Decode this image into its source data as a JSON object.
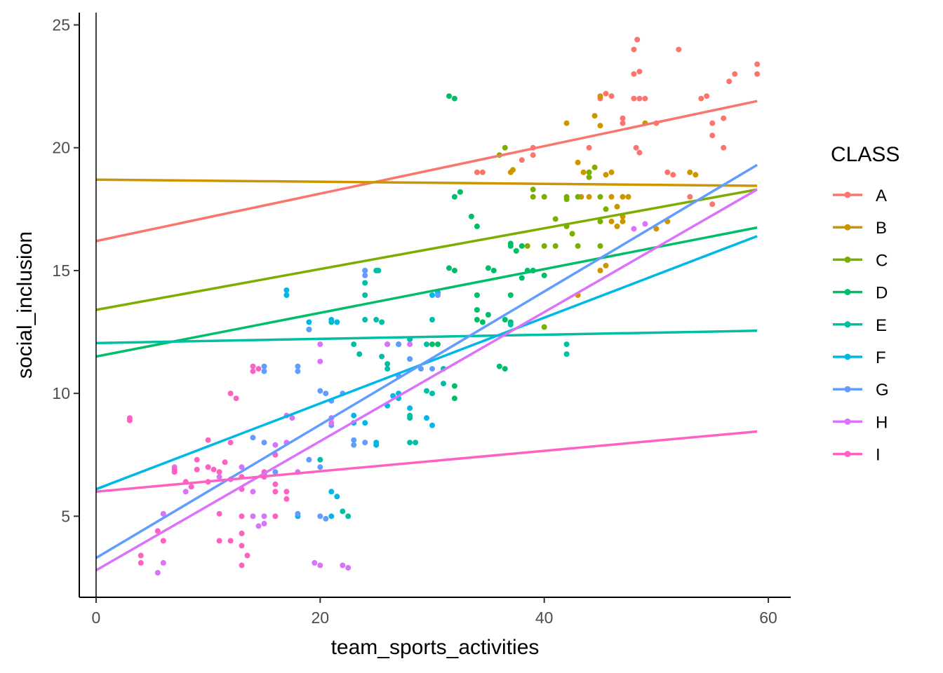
{
  "chart_data": {
    "type": "scatter",
    "xlabel": "team_sports_activities",
    "ylabel": "social_inclusion",
    "xlim": [
      -1.5,
      62
    ],
    "ylim": [
      1.7,
      25.5
    ],
    "xticks": [
      0,
      20,
      40,
      60
    ],
    "yticks": [
      5,
      10,
      15,
      20,
      25
    ],
    "grid": false,
    "zero_line_x": 0,
    "legend": {
      "title": "CLASS",
      "position": "right"
    },
    "series": [
      {
        "name": "A",
        "color": "#F8766D",
        "fit": [
          [
            0,
            16.2
          ],
          [
            59,
            21.9
          ]
        ],
        "points": [
          [
            34,
            19
          ],
          [
            34.5,
            19
          ],
          [
            38,
            19.5
          ],
          [
            39,
            20
          ],
          [
            39,
            19.7
          ],
          [
            44,
            20
          ],
          [
            45,
            22
          ],
          [
            45.5,
            22.2
          ],
          [
            46,
            22.1
          ],
          [
            47,
            21
          ],
          [
            47,
            21.2
          ],
          [
            48,
            24
          ],
          [
            48.3,
            24.4
          ],
          [
            48,
            23
          ],
          [
            48.5,
            23.1
          ],
          [
            48,
            22
          ],
          [
            48.5,
            22
          ],
          [
            49,
            22
          ],
          [
            48.2,
            20
          ],
          [
            48.5,
            19.8
          ],
          [
            50,
            21
          ],
          [
            51,
            19
          ],
          [
            51.5,
            18.9
          ],
          [
            52,
            24
          ],
          [
            54,
            22
          ],
          [
            54.5,
            22.1
          ],
          [
            55,
            21
          ],
          [
            55,
            20.5
          ],
          [
            56,
            21.2
          ],
          [
            56,
            20
          ],
          [
            56.5,
            22.7
          ],
          [
            57,
            23
          ],
          [
            59,
            23.4
          ],
          [
            59,
            23
          ],
          [
            53,
            18
          ],
          [
            55,
            17.7
          ]
        ]
      },
      {
        "name": "B",
        "color": "#CD9600",
        "fit": [
          [
            0,
            18.7
          ],
          [
            59,
            18.45
          ]
        ],
        "points": [
          [
            37,
            19
          ],
          [
            37.2,
            19.1
          ],
          [
            42,
            21
          ],
          [
            43,
            19.4
          ],
          [
            43.5,
            19
          ],
          [
            43.3,
            18
          ],
          [
            44,
            18
          ],
          [
            44.5,
            21.3
          ],
          [
            45,
            22.1
          ],
          [
            45,
            20.9
          ],
          [
            45.5,
            18.9
          ],
          [
            46,
            19
          ],
          [
            46,
            18
          ],
          [
            46,
            17
          ],
          [
            45,
            15
          ],
          [
            45.5,
            15.2
          ],
          [
            46.5,
            16.8
          ],
          [
            47,
            17.2
          ],
          [
            47,
            18
          ],
          [
            47.5,
            18
          ],
          [
            46.5,
            17.6
          ],
          [
            47,
            17
          ],
          [
            49,
            21
          ],
          [
            50,
            16.7
          ],
          [
            51,
            17
          ],
          [
            53,
            19
          ],
          [
            53.5,
            18.9
          ],
          [
            43,
            14
          ]
        ]
      },
      {
        "name": "C",
        "color": "#7CAE00",
        "fit": [
          [
            0,
            13.4
          ],
          [
            59,
            18.3
          ]
        ],
        "points": [
          [
            36,
            19.7
          ],
          [
            36.5,
            20
          ],
          [
            38.5,
            16
          ],
          [
            39,
            18
          ],
          [
            39,
            18.3
          ],
          [
            40,
            18
          ],
          [
            40,
            16
          ],
          [
            41,
            16
          ],
          [
            41,
            17.1
          ],
          [
            42,
            16.8
          ],
          [
            42,
            18
          ],
          [
            42.5,
            16.5
          ],
          [
            43,
            18
          ],
          [
            43,
            16
          ],
          [
            44,
            18.8
          ],
          [
            44,
            19
          ],
          [
            44.5,
            19.2
          ],
          [
            45,
            18
          ],
          [
            45,
            17
          ],
          [
            45,
            16
          ],
          [
            45.5,
            17.5
          ],
          [
            40,
            12.7
          ],
          [
            42,
            17.9
          ],
          [
            39,
            15
          ]
        ]
      },
      {
        "name": "D",
        "color": "#00BE67",
        "fit": [
          [
            0,
            11.5
          ],
          [
            59,
            16.75
          ]
        ],
        "points": [
          [
            31.5,
            22.1
          ],
          [
            32,
            22
          ],
          [
            32,
            18
          ],
          [
            32.5,
            18.2
          ],
          [
            31.5,
            15.1
          ],
          [
            32,
            15
          ],
          [
            33.5,
            17.2
          ],
          [
            34,
            16.8
          ],
          [
            34,
            14
          ],
          [
            34,
            13.4
          ],
          [
            34,
            13
          ],
          [
            34.5,
            12.9
          ],
          [
            35,
            15.1
          ],
          [
            35,
            13.2
          ],
          [
            35.5,
            15
          ],
          [
            36,
            11.1
          ],
          [
            36.5,
            11
          ],
          [
            36.5,
            13
          ],
          [
            37,
            14
          ],
          [
            37,
            16
          ],
          [
            37.5,
            15.8
          ],
          [
            37,
            12.9
          ],
          [
            38,
            14.7
          ],
          [
            38.5,
            15
          ],
          [
            39,
            15
          ],
          [
            40,
            14.8
          ],
          [
            38,
            16
          ],
          [
            37,
            16.1
          ],
          [
            32,
            10.3
          ],
          [
            32,
            9.8
          ],
          [
            30,
            12
          ],
          [
            30.5,
            12
          ]
        ]
      },
      {
        "name": "E",
        "color": "#00BFA4",
        "fit": [
          [
            0,
            12.05
          ],
          [
            59,
            12.55
          ]
        ],
        "points": [
          [
            24,
            15
          ],
          [
            24,
            14.5
          ],
          [
            24,
            14
          ],
          [
            25,
            15
          ],
          [
            25.2,
            15
          ],
          [
            24,
            13
          ],
          [
            25,
            13
          ],
          [
            25.5,
            12.9
          ],
          [
            26,
            12
          ],
          [
            26,
            11.2
          ],
          [
            26,
            11
          ],
          [
            25.5,
            11.5
          ],
          [
            23,
            12
          ],
          [
            23.5,
            11.6
          ],
          [
            27,
            12
          ],
          [
            28,
            12.2
          ],
          [
            28,
            11.4
          ],
          [
            28,
            9.1
          ],
          [
            28,
            9
          ],
          [
            28,
            8
          ],
          [
            28.5,
            8
          ],
          [
            29.5,
            10.1
          ],
          [
            30,
            10
          ],
          [
            30,
            13
          ],
          [
            29.5,
            12
          ],
          [
            31,
            11
          ],
          [
            31,
            10.4
          ],
          [
            22,
            5.2
          ],
          [
            22.5,
            5
          ],
          [
            20,
            7.3
          ],
          [
            21,
            12.9
          ],
          [
            42,
            12
          ],
          [
            42,
            11.6
          ],
          [
            37,
            12.8
          ]
        ]
      },
      {
        "name": "F",
        "color": "#00B8E7",
        "fit": [
          [
            0,
            6.1
          ],
          [
            59,
            16.4
          ]
        ],
        "points": [
          [
            17,
            14.2
          ],
          [
            17,
            14
          ],
          [
            21,
            13
          ],
          [
            21.5,
            12.9
          ],
          [
            23,
            9.1
          ],
          [
            23,
            8.8
          ],
          [
            24,
            8.8
          ],
          [
            25,
            8
          ],
          [
            25,
            7.9
          ],
          [
            26,
            9.5
          ],
          [
            26.5,
            9.9
          ],
          [
            27,
            9.8
          ],
          [
            27,
            10
          ],
          [
            28,
            9.4
          ],
          [
            29.5,
            9
          ],
          [
            30,
            8.7
          ],
          [
            30,
            14
          ],
          [
            30.5,
            14.1
          ],
          [
            21,
            5
          ],
          [
            21.5,
            5.8
          ],
          [
            21,
            6
          ],
          [
            18,
            5
          ],
          [
            19,
            12.9
          ],
          [
            19,
            12.6
          ]
        ]
      },
      {
        "name": "G",
        "color": "#619CFF",
        "fit": [
          [
            0,
            3.3
          ],
          [
            59,
            19.3
          ]
        ],
        "points": [
          [
            15,
            11.1
          ],
          [
            15,
            10.9
          ],
          [
            14,
            8.2
          ],
          [
            15,
            8
          ],
          [
            16,
            6.8
          ],
          [
            15,
            6.7
          ],
          [
            18,
            11.1
          ],
          [
            18,
            10.9
          ],
          [
            19,
            7.3
          ],
          [
            20,
            7
          ],
          [
            19,
            12.6
          ],
          [
            20,
            10.1
          ],
          [
            20.5,
            10
          ],
          [
            21,
            9.7
          ],
          [
            21,
            9
          ],
          [
            21,
            8.7
          ],
          [
            22,
            10
          ],
          [
            20,
            5
          ],
          [
            20.5,
            4.9
          ],
          [
            23,
            8.1
          ],
          [
            23,
            7.9
          ],
          [
            24,
            8
          ],
          [
            24,
            15
          ],
          [
            24,
            14.8
          ],
          [
            27,
            12
          ],
          [
            28,
            11.4
          ],
          [
            27,
            10.7
          ],
          [
            30,
            11
          ],
          [
            29,
            11
          ],
          [
            30.5,
            14
          ],
          [
            18,
            5.1
          ]
        ]
      },
      {
        "name": "H",
        "color": "#DB72FB",
        "fit": [
          [
            0,
            2.8
          ],
          [
            59,
            18.3
          ]
        ],
        "points": [
          [
            6,
            5.1
          ],
          [
            6,
            3.1
          ],
          [
            5.5,
            2.7
          ],
          [
            7,
            7
          ],
          [
            8,
            6
          ],
          [
            10,
            7
          ],
          [
            11,
            6.6
          ],
          [
            12,
            6.5
          ],
          [
            13,
            7
          ],
          [
            14,
            6
          ],
          [
            14,
            5
          ],
          [
            14.5,
            4.6
          ],
          [
            15,
            4.7
          ],
          [
            15,
            5
          ],
          [
            16,
            7.9
          ],
          [
            17,
            8
          ],
          [
            17,
            9.1
          ],
          [
            17.5,
            9
          ],
          [
            18,
            6.8
          ],
          [
            20,
            12
          ],
          [
            20,
            11.3
          ],
          [
            21,
            9
          ],
          [
            21,
            8.8
          ],
          [
            19.5,
            3.1
          ],
          [
            20,
            3
          ],
          [
            22,
            3
          ],
          [
            22.5,
            2.9
          ],
          [
            26,
            12
          ],
          [
            28,
            12
          ],
          [
            48,
            16.7
          ],
          [
            49,
            16.9
          ]
        ]
      },
      {
        "name": "I",
        "color": "#FF61C3",
        "fit": [
          [
            0,
            6.0
          ],
          [
            59,
            8.45
          ]
        ],
        "points": [
          [
            3,
            9
          ],
          [
            3,
            8.9
          ],
          [
            4,
            3.4
          ],
          [
            4,
            3.1
          ],
          [
            5.5,
            4.4
          ],
          [
            6,
            4
          ],
          [
            7,
            6.8
          ],
          [
            7,
            6.9
          ],
          [
            8,
            6.4
          ],
          [
            8.5,
            6.2
          ],
          [
            9,
            7.3
          ],
          [
            10,
            8.1
          ],
          [
            10,
            7
          ],
          [
            11,
            6.8
          ],
          [
            11,
            5.1
          ],
          [
            11,
            4
          ],
          [
            10.5,
            6.9
          ],
          [
            11.5,
            7.2
          ],
          [
            12,
            8
          ],
          [
            12,
            10
          ],
          [
            12.5,
            9.8
          ],
          [
            13,
            6.6
          ],
          [
            13,
            6.1
          ],
          [
            13,
            5
          ],
          [
            12,
            4
          ],
          [
            13,
            4.3
          ],
          [
            13,
            3.8
          ],
          [
            13,
            3
          ],
          [
            13.5,
            3.4
          ],
          [
            14,
            11.1
          ],
          [
            14,
            10.9
          ],
          [
            14.5,
            11
          ],
          [
            15,
            6.8
          ],
          [
            15,
            6.6
          ],
          [
            16,
            6.3
          ],
          [
            16,
            6
          ],
          [
            16,
            5
          ],
          [
            17,
            6
          ],
          [
            17,
            5.7
          ],
          [
            16,
            7.5
          ],
          [
            10,
            6.4
          ],
          [
            9,
            6.9
          ]
        ]
      }
    ]
  }
}
